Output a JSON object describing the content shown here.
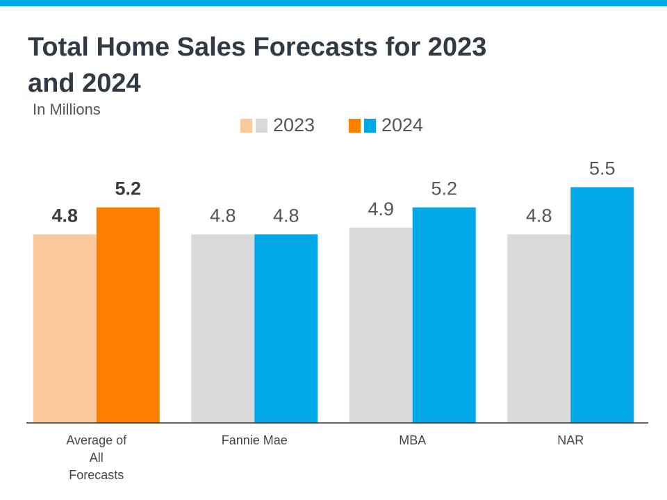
{
  "chart_data": {
    "type": "bar",
    "title": "Total Home Sales Forecasts for 2023 and 2024",
    "subtitle": "In Millions",
    "categories": [
      "Average of All Forecasts",
      "Fannie Mae",
      "MBA",
      "NAR"
    ],
    "series": [
      {
        "name": "2023",
        "colors": [
          "#fbc99a",
          "#d9d9d9",
          "#d9d9d9",
          "#d9d9d9"
        ],
        "values": [
          4.8,
          4.8,
          4.9,
          4.8
        ]
      },
      {
        "name": "2024",
        "colors": [
          "#ff8000",
          "#00a8e8",
          "#00a8e8",
          "#00a8e8"
        ],
        "values": [
          5.2,
          4.8,
          5.2,
          5.5
        ]
      }
    ],
    "ylim": [
      2,
      6
    ]
  }
}
